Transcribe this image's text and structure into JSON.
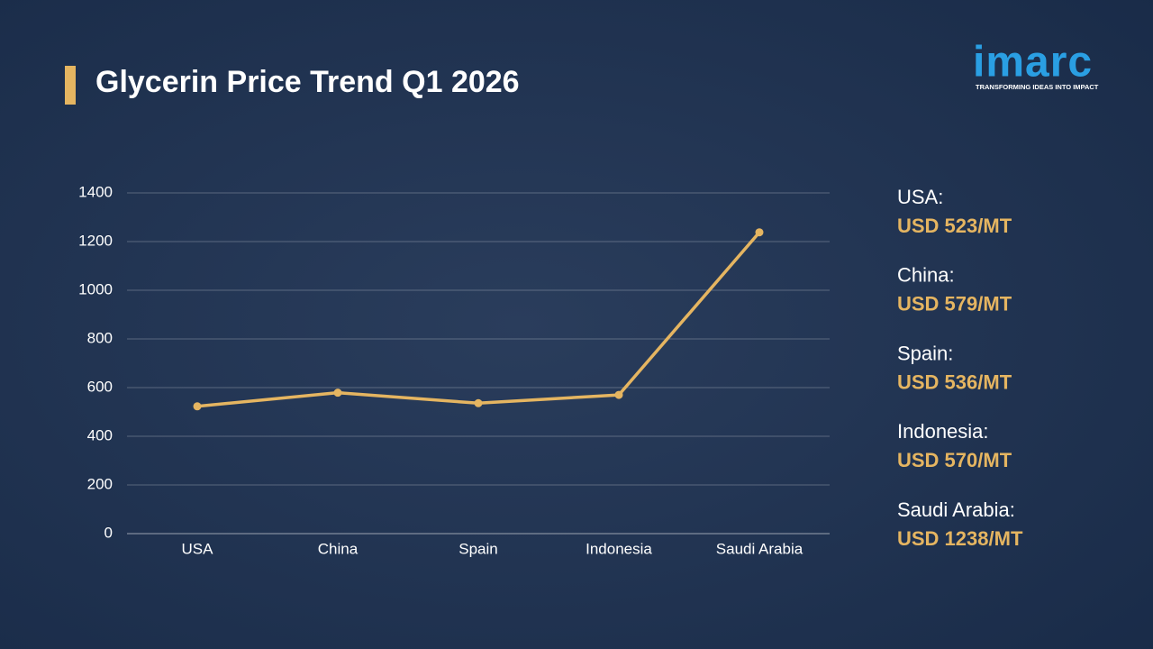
{
  "chart_data": {
    "type": "line",
    "title": "Glycerin Price Trend Q1 2026",
    "categories": [
      "USA",
      "China",
      "Spain",
      "Indonesia",
      "Saudi Arabia"
    ],
    "values": [
      523,
      579,
      536,
      570,
      1238
    ],
    "value_labels": [
      "USD 523/MT",
      "USD 579/MT",
      "USD 536/MT",
      "USD 570/MT",
      "USD 1238/MT"
    ],
    "summary_labels": [
      "USA:",
      "China:",
      "Spain:",
      "Indonesia:",
      "Saudi Arabia:"
    ],
    "color": "#e5b561",
    "ylim": [
      0,
      1400
    ],
    "yticks": [
      0,
      200,
      400,
      600,
      800,
      1000,
      1200,
      1400
    ],
    "grid": true
  },
  "logo": {
    "text": "imarc",
    "tagline": "TRANSFORMING IDEAS INTO IMPACT"
  }
}
